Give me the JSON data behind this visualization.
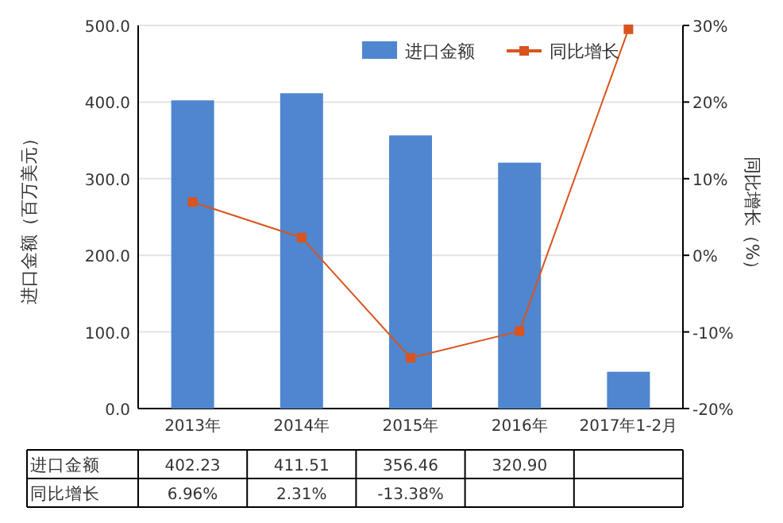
{
  "chart_data": {
    "type": "bar",
    "categories": [
      "2013年",
      "2014年",
      "2015年",
      "2016年",
      "2017年1-2月"
    ],
    "series": [
      {
        "name": "进口金额",
        "color": "#4f86cf",
        "values": [
          402.23,
          411.51,
          356.46,
          320.9,
          48
        ],
        "value_labels": [
          "402.23",
          "411.51",
          "356.46",
          "320.90",
          null
        ]
      },
      {
        "name": "同比增长",
        "type": "line",
        "axis": "y2",
        "color": "#d9541e",
        "marker": "square",
        "values": [
          6.96,
          2.31,
          -13.38,
          -9.9,
          29.5
        ],
        "value_labels": [
          "6.96%",
          "2.31%",
          "-13.38%",
          null,
          null
        ]
      }
    ],
    "ylabel": "进口金额（百万美元）",
    "y2label": "同比增长（%）",
    "ylim": [
      0,
      500
    ],
    "yticks": [
      {
        "value": 0,
        "label": "0.0"
      },
      {
        "value": 100,
        "label": "100.0"
      },
      {
        "value": 200,
        "label": "200.0"
      },
      {
        "value": 300,
        "label": "300.0"
      },
      {
        "value": 400,
        "label": "400.0"
      },
      {
        "value": 500,
        "label": "500.0"
      }
    ],
    "y2lim": [
      -20,
      30
    ],
    "y2ticks": [
      {
        "value": -20,
        "label": "-20%"
      },
      {
        "value": -10,
        "label": "-10%"
      },
      {
        "value": 0,
        "label": "0%"
      },
      {
        "value": 10,
        "label": "10%"
      },
      {
        "value": 20,
        "label": "20%"
      },
      {
        "value": 30,
        "label": "30%"
      }
    ],
    "grid": "y",
    "legend": "top right"
  }
}
